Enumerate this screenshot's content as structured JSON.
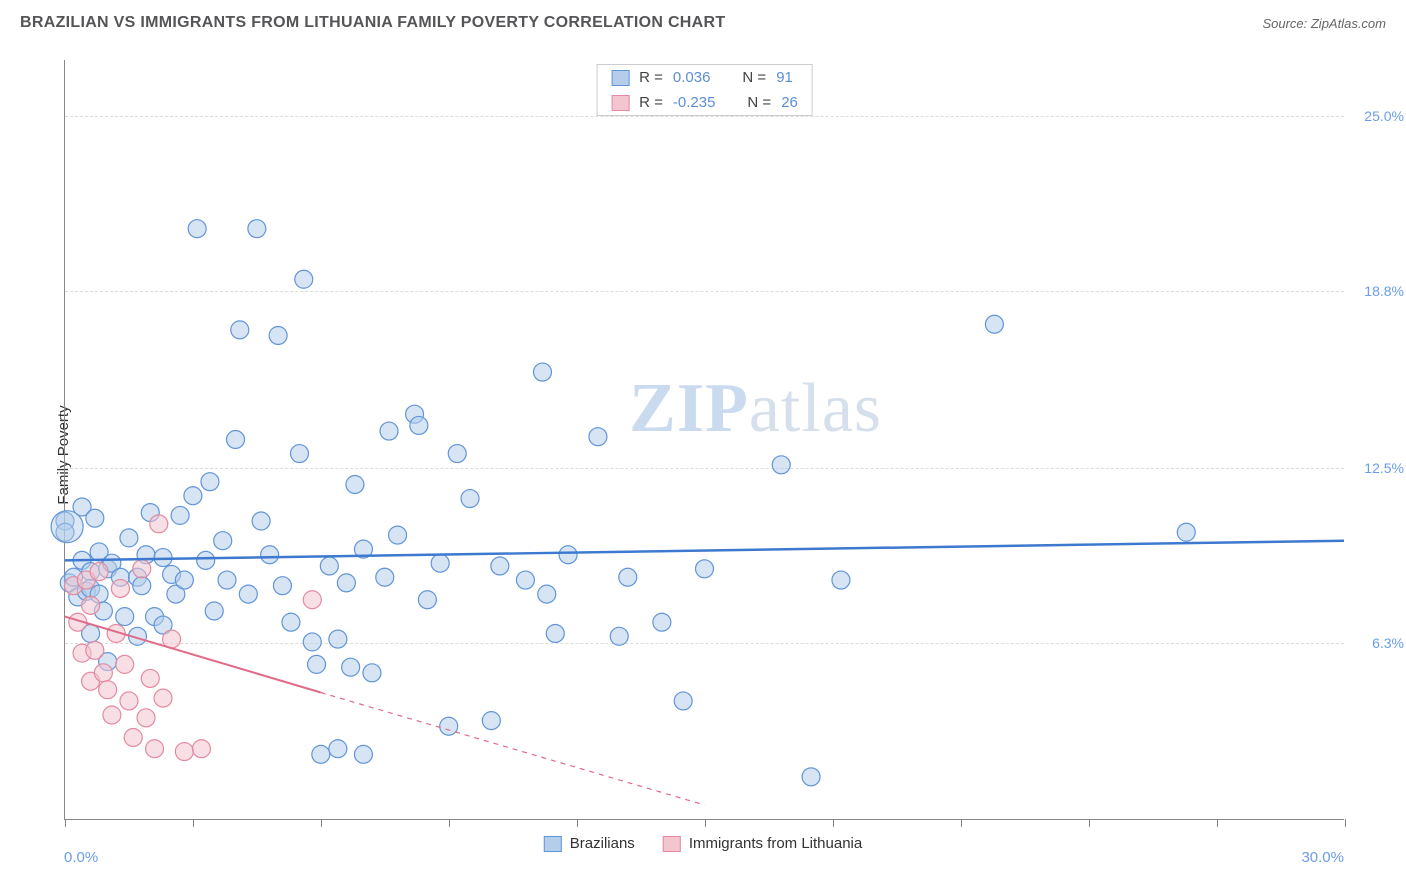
{
  "header": {
    "title": "BRAZILIAN VS IMMIGRANTS FROM LITHUANIA FAMILY POVERTY CORRELATION CHART",
    "source_prefix": "Source: ",
    "source_name": "ZipAtlas.com"
  },
  "chart": {
    "type": "scatter",
    "ylabel": "Family Poverty",
    "xlim": [
      0,
      30
    ],
    "ylim": [
      0,
      27
    ],
    "xtick_positions": [
      0,
      3,
      6,
      9,
      12,
      15,
      18,
      21,
      24,
      27,
      30
    ],
    "x_axis_labels": {
      "left": "0.0%",
      "right": "30.0%"
    },
    "y_gridlines": [
      {
        "value": 6.3,
        "label": "6.3%"
      },
      {
        "value": 12.5,
        "label": "12.5%"
      },
      {
        "value": 18.8,
        "label": "18.8%"
      },
      {
        "value": 25.0,
        "label": "25.0%"
      }
    ],
    "background_color": "#ffffff",
    "grid_color": "#dcdcdc",
    "axis_color": "#888888",
    "tick_label_color": "#6a9de8",
    "series": {
      "brazilians": {
        "label": "Brazilians",
        "marker_fill": "#b4cdea",
        "marker_stroke": "#6195d8",
        "marker_fill_opacity": 0.55,
        "marker_radius": 9,
        "trend_color": "#3d79cf",
        "trend_width": 2.5,
        "trend": {
          "y_at_x0": 9.2,
          "y_at_x30": 9.9
        },
        "R": "0.036",
        "N": "91",
        "points": [
          [
            0.0,
            10.6
          ],
          [
            0.0,
            10.2
          ],
          [
            0.1,
            8.4
          ],
          [
            0.2,
            8.6
          ],
          [
            0.3,
            7.9
          ],
          [
            0.4,
            9.2
          ],
          [
            0.4,
            11.1
          ],
          [
            0.5,
            8.1
          ],
          [
            0.6,
            8.8
          ],
          [
            0.6,
            8.2
          ],
          [
            0.6,
            6.6
          ],
          [
            0.7,
            10.7
          ],
          [
            0.8,
            9.5
          ],
          [
            0.8,
            8.0
          ],
          [
            0.9,
            7.4
          ],
          [
            1.0,
            8.9
          ],
          [
            1.0,
            5.6
          ],
          [
            1.1,
            9.1
          ],
          [
            1.3,
            8.6
          ],
          [
            1.4,
            7.2
          ],
          [
            1.5,
            10.0
          ],
          [
            1.7,
            8.6
          ],
          [
            1.7,
            6.5
          ],
          [
            1.8,
            8.3
          ],
          [
            1.9,
            9.4
          ],
          [
            2.0,
            10.9
          ],
          [
            2.1,
            7.2
          ],
          [
            2.3,
            9.3
          ],
          [
            2.3,
            6.9
          ],
          [
            2.5,
            8.7
          ],
          [
            2.6,
            8.0
          ],
          [
            2.7,
            10.8
          ],
          [
            2.8,
            8.5
          ],
          [
            3.0,
            11.5
          ],
          [
            3.1,
            21.0
          ],
          [
            3.3,
            9.2
          ],
          [
            3.4,
            12.0
          ],
          [
            3.5,
            7.4
          ],
          [
            3.7,
            9.9
          ],
          [
            3.8,
            8.5
          ],
          [
            4.0,
            13.5
          ],
          [
            4.1,
            17.4
          ],
          [
            4.3,
            8.0
          ],
          [
            4.5,
            21.0
          ],
          [
            4.8,
            9.4
          ],
          [
            5.0,
            17.2
          ],
          [
            5.1,
            8.3
          ],
          [
            5.3,
            7.0
          ],
          [
            5.5,
            13.0
          ],
          [
            5.6,
            19.2
          ],
          [
            5.8,
            6.3
          ],
          [
            5.9,
            5.5
          ],
          [
            6.0,
            2.3
          ],
          [
            6.2,
            9.0
          ],
          [
            6.4,
            6.4
          ],
          [
            6.4,
            2.5
          ],
          [
            6.6,
            8.4
          ],
          [
            6.7,
            5.4
          ],
          [
            6.8,
            11.9
          ],
          [
            7.0,
            9.6
          ],
          [
            7.0,
            2.3
          ],
          [
            7.2,
            5.2
          ],
          [
            7.5,
            8.6
          ],
          [
            7.6,
            13.8
          ],
          [
            7.8,
            10.1
          ],
          [
            8.2,
            14.4
          ],
          [
            8.3,
            14.0
          ],
          [
            8.5,
            7.8
          ],
          [
            8.8,
            9.1
          ],
          [
            9.0,
            3.3
          ],
          [
            9.2,
            13.0
          ],
          [
            9.5,
            11.4
          ],
          [
            10.0,
            3.5
          ],
          [
            10.2,
            9.0
          ],
          [
            10.8,
            8.5
          ],
          [
            11.2,
            15.9
          ],
          [
            11.3,
            8.0
          ],
          [
            11.5,
            6.6
          ],
          [
            11.8,
            9.4
          ],
          [
            12.5,
            13.6
          ],
          [
            13.0,
            6.5
          ],
          [
            13.2,
            8.6
          ],
          [
            14.0,
            7.0
          ],
          [
            14.5,
            4.2
          ],
          [
            15.0,
            8.9
          ],
          [
            16.8,
            12.6
          ],
          [
            17.5,
            1.5
          ],
          [
            18.2,
            8.5
          ],
          [
            21.8,
            17.6
          ],
          [
            26.3,
            10.2
          ],
          [
            4.6,
            10.6
          ]
        ]
      },
      "lithuania": {
        "label": "Immigrants from Lithuania",
        "marker_fill": "#f2c5cf",
        "marker_stroke": "#e48aa0",
        "marker_fill_opacity": 0.55,
        "marker_radius": 9,
        "trend_color": "#e06b88",
        "trend_width": 2,
        "trend_solid": {
          "x0": 0.0,
          "y0": 7.2,
          "x1": 6.0,
          "y1": 4.5
        },
        "trend_dash": {
          "x0": 6.0,
          "y0": 4.5,
          "x1": 15.0,
          "y1": 0.5
        },
        "R": "-0.235",
        "N": "26",
        "points": [
          [
            0.2,
            8.3
          ],
          [
            0.3,
            7.0
          ],
          [
            0.4,
            5.9
          ],
          [
            0.5,
            8.5
          ],
          [
            0.6,
            7.6
          ],
          [
            0.6,
            4.9
          ],
          [
            0.7,
            6.0
          ],
          [
            0.8,
            8.8
          ],
          [
            0.9,
            5.2
          ],
          [
            1.0,
            4.6
          ],
          [
            1.1,
            3.7
          ],
          [
            1.2,
            6.6
          ],
          [
            1.3,
            8.2
          ],
          [
            1.4,
            5.5
          ],
          [
            1.5,
            4.2
          ],
          [
            1.6,
            2.9
          ],
          [
            1.8,
            8.9
          ],
          [
            1.9,
            3.6
          ],
          [
            2.0,
            5.0
          ],
          [
            2.1,
            2.5
          ],
          [
            2.2,
            10.5
          ],
          [
            2.3,
            4.3
          ],
          [
            2.5,
            6.4
          ],
          [
            2.8,
            2.4
          ],
          [
            3.2,
            2.5
          ],
          [
            5.8,
            7.8
          ]
        ]
      }
    },
    "legend_top": {
      "r_prefix": "R  =",
      "n_prefix": "N  ="
    },
    "watermark": {
      "zip": "ZIP",
      "atlas": "atlas"
    }
  }
}
